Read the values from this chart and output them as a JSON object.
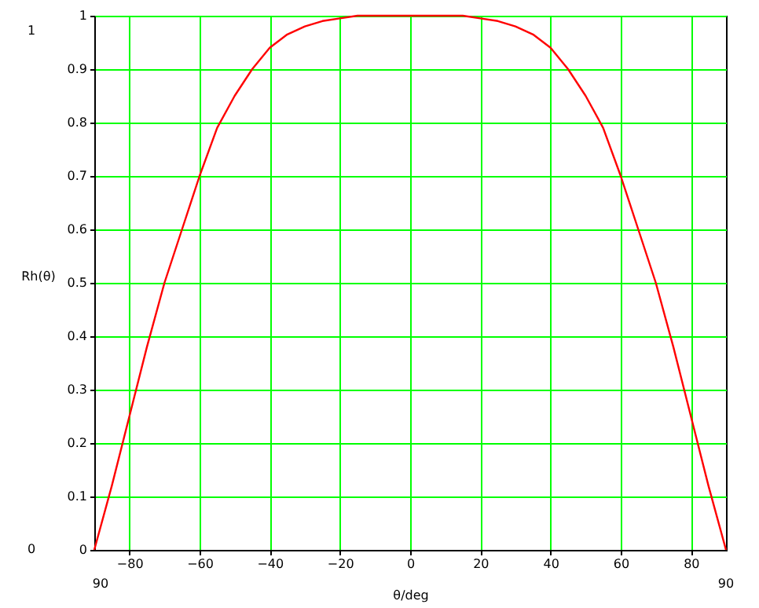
{
  "chart_data": {
    "type": "line",
    "xlabel": "θ/deg",
    "ylabel": "Rh(θ)",
    "x": [
      -90,
      -85,
      -80,
      -75,
      -70,
      -65,
      -60,
      -55,
      -50,
      -45,
      -40,
      -35,
      -30,
      -25,
      -20,
      -15,
      -10,
      -5,
      0,
      5,
      10,
      15,
      20,
      25,
      30,
      35,
      40,
      45,
      50,
      55,
      60,
      65,
      70,
      75,
      80,
      85,
      90
    ],
    "series": [
      {
        "color": "#ff0000",
        "values": [
          0,
          0.12,
          0.25,
          0.38,
          0.5,
          0.6,
          0.7,
          0.79,
          0.85,
          0.9,
          0.94,
          0.965,
          0.98,
          0.99,
          0.995,
          1,
          1,
          1,
          1,
          1,
          1,
          1,
          0.995,
          0.99,
          0.98,
          0.965,
          0.94,
          0.9,
          0.85,
          0.79,
          0.7,
          0.6,
          0.5,
          0.38,
          0.25,
          0.12,
          0
        ]
      }
    ],
    "xlim": [
      -90,
      90
    ],
    "xticks": [
      -80,
      -60,
      -40,
      -20,
      0,
      20,
      40,
      60,
      80
    ],
    "ylim": [
      0,
      1
    ],
    "yticks": [
      0,
      0.1,
      0.2,
      0.3,
      0.4,
      0.5,
      0.6,
      0.7,
      0.8,
      0.9,
      1
    ],
    "grid": true,
    "marker": "none",
    "line_style": "solid",
    "annotations": [
      "1",
      "0",
      "90",
      "90"
    ]
  }
}
